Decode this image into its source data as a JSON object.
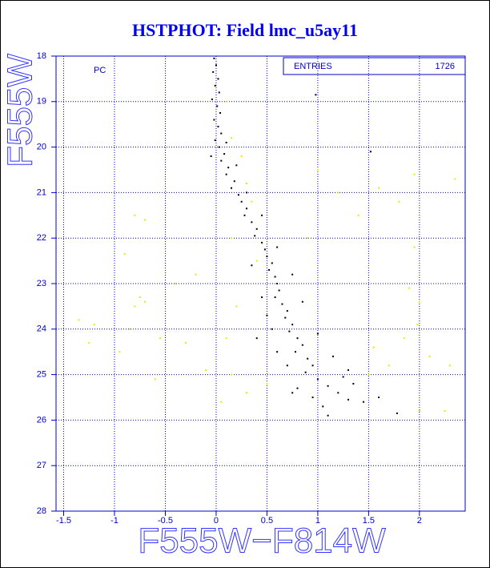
{
  "chart_data": {
    "type": "scatter",
    "title": "HSTPHOT: Field lmc_u5ay11",
    "x_label": "F555W−F814W",
    "y_label": "F555W",
    "annotation": "PC",
    "stats": {
      "label": "ENTRIES",
      "value": 1726
    },
    "xlim": [
      -1.575,
      2.45
    ],
    "ylim": [
      18,
      28
    ],
    "invert_y": true,
    "grid": true,
    "xticks": [
      -1.5,
      -1,
      -0.5,
      0,
      0.5,
      1,
      1.5,
      2
    ],
    "yticks": [
      18,
      19,
      20,
      21,
      22,
      23,
      24,
      25,
      26,
      27,
      28
    ],
    "series": [
      {
        "color": "#000000",
        "x": [
          -0.02,
          0.0,
          -0.03,
          0.02,
          -0.01,
          0.03,
          -0.04,
          0.01,
          0.04,
          -0.02,
          0.02,
          0.05,
          -0.01,
          0.03,
          0.08,
          0.05,
          0.12,
          0.1,
          0.18,
          0.15,
          0.22,
          0.25,
          0.3,
          0.28,
          0.35,
          0.4,
          0.38,
          0.45,
          0.48,
          0.5,
          0.55,
          0.52,
          0.58,
          0.6,
          0.62,
          0.58,
          0.65,
          0.7,
          0.68,
          0.75,
          0.72,
          0.8,
          0.85,
          0.78,
          0.9,
          0.95,
          0.88,
          1.0,
          1.1,
          1.2,
          0.95,
          1.3,
          1.05,
          1.45,
          1.6,
          1.78,
          0.75,
          1.35,
          0.1,
          -0.05,
          0.2,
          0.3,
          0.45,
          0.6,
          0.35,
          0.75,
          0.45,
          0.85,
          0.55,
          1.0,
          0.6,
          1.15,
          0.4,
          1.3,
          0.8,
          1.1,
          0.98,
          1.52,
          0.7,
          1.25,
          0.5
        ],
        "y": [
          18.05,
          18.2,
          18.35,
          18.5,
          18.65,
          18.8,
          18.95,
          19.1,
          19.25,
          19.4,
          19.55,
          19.7,
          19.85,
          20.0,
          20.15,
          20.3,
          20.45,
          20.6,
          20.75,
          20.9,
          21.05,
          21.2,
          21.35,
          21.5,
          21.65,
          21.8,
          21.95,
          22.1,
          22.25,
          22.4,
          22.55,
          22.7,
          22.85,
          23.0,
          23.15,
          23.3,
          23.45,
          23.6,
          23.75,
          23.9,
          24.05,
          24.2,
          24.35,
          24.5,
          24.65,
          24.8,
          24.95,
          25.1,
          25.25,
          25.4,
          25.5,
          25.55,
          25.7,
          25.6,
          25.5,
          25.85,
          25.4,
          25.2,
          19.9,
          20.2,
          20.4,
          21.0,
          21.5,
          22.2,
          22.6,
          22.8,
          23.3,
          23.4,
          24.0,
          24.1,
          24.5,
          24.6,
          24.2,
          24.9,
          25.3,
          25.9,
          18.85,
          20.1,
          24.8,
          25.05,
          23.7
        ]
      },
      {
        "color": "#e8e800",
        "x": [
          -0.8,
          -0.7,
          -0.9,
          -0.75,
          -0.8,
          -0.7,
          -1.2,
          -1.35,
          -0.85,
          -0.55,
          -0.3,
          -1.25,
          -0.4,
          -0.2,
          0.1,
          0.15,
          0.25,
          0.3,
          0.35,
          0.15,
          0.4,
          0.2,
          0.1,
          0.15,
          0.3,
          0.5,
          1.0,
          1.2,
          1.4,
          1.8,
          1.95,
          1.9,
          2.0,
          1.98,
          1.85,
          1.7,
          2.1,
          2.3,
          2.25,
          2.0,
          1.5,
          1.55,
          -0.1,
          -0.6,
          0.05,
          1.6,
          2.35,
          1.95,
          -0.95,
          0.9
        ],
        "y": [
          21.5,
          21.6,
          22.35,
          23.3,
          23.5,
          23.4,
          23.9,
          23.8,
          24.0,
          24.2,
          24.3,
          24.3,
          23.0,
          22.8,
          19.0,
          19.8,
          20.2,
          20.8,
          21.2,
          22.0,
          22.5,
          23.5,
          24.2,
          25.0,
          25.4,
          25.2,
          20.5,
          21.0,
          21.5,
          21.2,
          22.2,
          23.1,
          23.4,
          23.9,
          24.2,
          24.8,
          24.6,
          24.8,
          25.8,
          25.8,
          25.0,
          24.4,
          24.9,
          25.1,
          25.6,
          20.9,
          20.7,
          20.6,
          24.5,
          22.0
        ]
      }
    ]
  }
}
